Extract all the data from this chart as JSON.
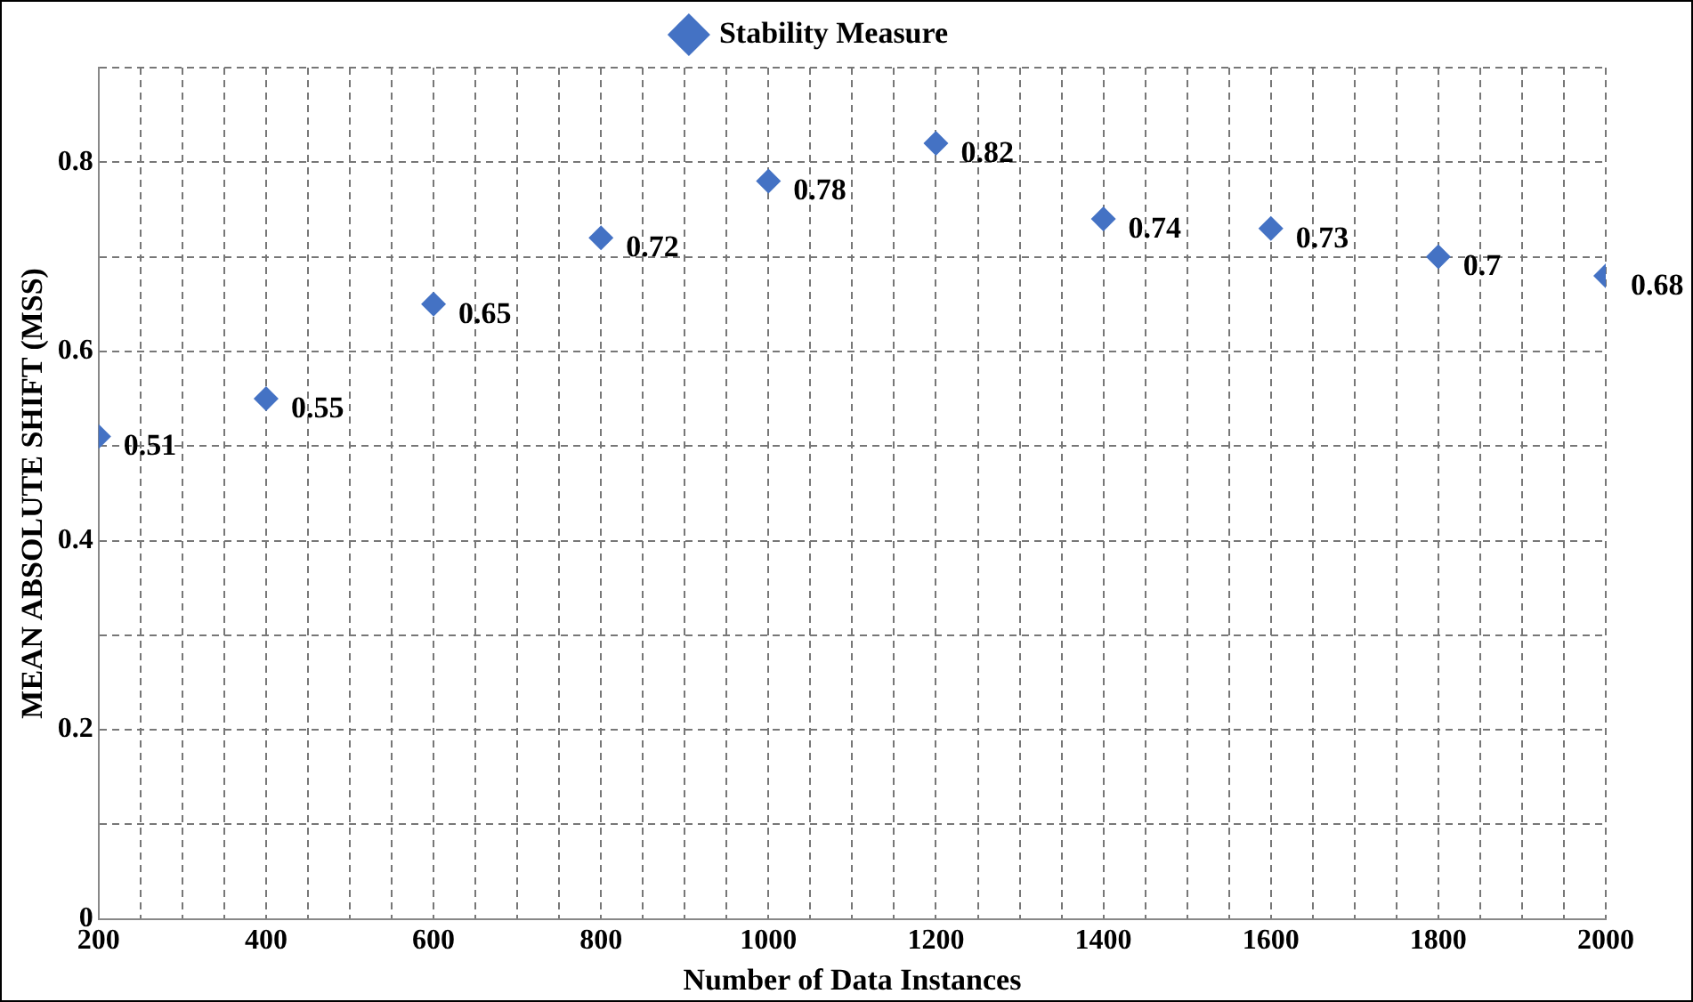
{
  "chart_data": {
    "type": "scatter",
    "xlabel": "Number of Data Instances",
    "ylabel": "MEAN ABSOLUTE SHIFT (MSS)",
    "x": [
      200,
      400,
      600,
      800,
      1000,
      1200,
      1400,
      1600,
      1800,
      2000
    ],
    "series": [
      {
        "name": "Stability Measure",
        "color": "#4472c4",
        "values": [
          0.51,
          0.55,
          0.65,
          0.72,
          0.78,
          0.82,
          0.74,
          0.73,
          0.7,
          0.68
        ]
      }
    ],
    "xlim": [
      200,
      2000
    ],
    "xticks": [
      200,
      {
        "value": 250,
        "label": null
      },
      {
        "value": 300,
        "label": null
      },
      {
        "value": 350,
        "label": null
      },
      400,
      {
        "value": 450,
        "label": null
      },
      {
        "value": 500,
        "label": null
      },
      {
        "value": 550,
        "label": null
      },
      600,
      {
        "value": 650,
        "label": null
      },
      {
        "value": 700,
        "label": null
      },
      {
        "value": 750,
        "label": null
      },
      800,
      {
        "value": 850,
        "label": null
      },
      {
        "value": 900,
        "label": null
      },
      {
        "value": 950,
        "label": null
      },
      1000,
      {
        "value": 1050,
        "label": null
      },
      {
        "value": 1100,
        "label": null
      },
      {
        "value": 1150,
        "label": null
      },
      1200,
      {
        "value": 1250,
        "label": null
      },
      {
        "value": 1300,
        "label": null
      },
      {
        "value": 1350,
        "label": null
      },
      1400,
      {
        "value": 1450,
        "label": null
      },
      {
        "value": 1500,
        "label": null
      },
      {
        "value": 1550,
        "label": null
      },
      1600,
      {
        "value": 1650,
        "label": null
      },
      {
        "value": 1700,
        "label": null
      },
      {
        "value": 1750,
        "label": null
      },
      1800,
      {
        "value": 1850,
        "label": null
      },
      {
        "value": 1900,
        "label": null
      },
      {
        "value": 1950,
        "label": null
      },
      2000
    ],
    "ylim": [
      0,
      0.9
    ],
    "yticks": [
      0,
      {
        "value": 0.1,
        "label": null
      },
      0.2,
      {
        "value": 0.3,
        "label": null
      },
      0.4,
      {
        "value": 0.5,
        "label": null
      },
      0.6,
      {
        "value": 0.7,
        "label": null
      },
      0.8,
      {
        "value": 0.9,
        "label": null
      }
    ],
    "grid": true,
    "legend": "top",
    "marker": "diamond",
    "data_labels": true
  }
}
